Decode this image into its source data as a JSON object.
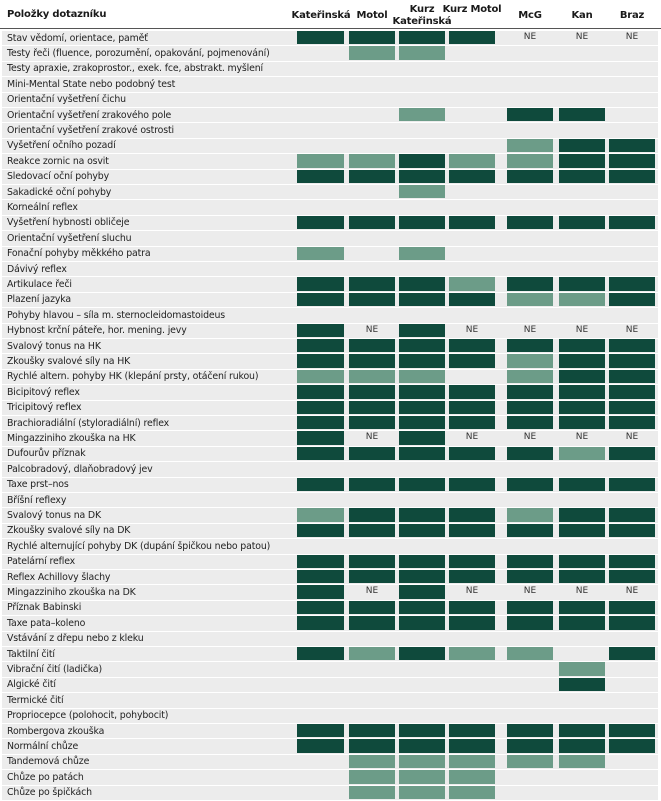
{
  "colors": {
    "D": "#0f4a3c",
    "M": "#6c9c88",
    "N": "#ececec",
    "row_bg": "#ececec"
  },
  "header": {
    "items": "Položky dotazníku",
    "cols": [
      "Kateřinská",
      "Motol",
      "Kurz Kateřinská",
      "Kurz Motol",
      "McG",
      "Kan",
      "Braz"
    ]
  },
  "ne_text": "NE",
  "rows": [
    {
      "label": "Stav vědomí, orientace, paměť",
      "c": [
        "D",
        "D",
        "D",
        "D",
        "NE",
        "NE",
        "NE"
      ]
    },
    {
      "label": "Testy řeči (fluence, porozumění, opakování, pojmenování)",
      "c": [
        "N",
        "M",
        "M",
        "N",
        "N",
        "N",
        "N"
      ]
    },
    {
      "label": "Testy apraxie, zrakoprostor., exek. fce, abstrakt. myšlení",
      "c": [
        "N",
        "N",
        "N",
        "N",
        "N",
        "N",
        "N"
      ]
    },
    {
      "label": "Mini-Mental State nebo podobný test",
      "c": [
        "N",
        "N",
        "N",
        "N",
        "N",
        "N",
        "N"
      ]
    },
    {
      "label": "Orientační vyšetření čichu",
      "c": [
        "N",
        "N",
        "N",
        "N",
        "N",
        "N",
        "N"
      ]
    },
    {
      "label": "Orientační vyšetření zrakového pole",
      "c": [
        "N",
        "N",
        "M",
        "N",
        "D",
        "D",
        "N"
      ]
    },
    {
      "label": "Orientační vyšetření zrakové ostrosti",
      "c": [
        "N",
        "N",
        "N",
        "N",
        "N",
        "N",
        "N"
      ]
    },
    {
      "label": "Vyšetření očního pozadí",
      "c": [
        "N",
        "N",
        "N",
        "N",
        "M",
        "D",
        "D"
      ]
    },
    {
      "label": "Reakce zornic na osvit",
      "c": [
        "M",
        "M",
        "D",
        "M",
        "M",
        "D",
        "D"
      ]
    },
    {
      "label": "Sledovací oční pohyby",
      "c": [
        "D",
        "D",
        "D",
        "D",
        "D",
        "D",
        "D"
      ]
    },
    {
      "label": "Sakadické oční pohyby",
      "c": [
        "N",
        "N",
        "M",
        "N",
        "N",
        "N",
        "N"
      ]
    },
    {
      "label": "Korneální reflex",
      "c": [
        "N",
        "N",
        "N",
        "N",
        "N",
        "N",
        "N"
      ]
    },
    {
      "label": "Vyšetření hybnosti obličeje",
      "c": [
        "D",
        "D",
        "D",
        "D",
        "D",
        "D",
        "D"
      ]
    },
    {
      "label": "Orientační vyšetření sluchu",
      "c": [
        "N",
        "N",
        "N",
        "N",
        "N",
        "N",
        "N"
      ]
    },
    {
      "label": "Fonační pohyby měkkého patra",
      "c": [
        "M",
        "N",
        "M",
        "N",
        "N",
        "N",
        "N"
      ]
    },
    {
      "label": "Dávivý reflex",
      "c": [
        "N",
        "N",
        "N",
        "N",
        "N",
        "N",
        "N"
      ]
    },
    {
      "label": "Artikulace řeči",
      "c": [
        "D",
        "D",
        "D",
        "M",
        "D",
        "D",
        "D"
      ]
    },
    {
      "label": "Plazení jazyka",
      "c": [
        "D",
        "D",
        "D",
        "D",
        "M",
        "M",
        "D"
      ]
    },
    {
      "label": "Pohyby hlavou – síla m. sternocleidomastoideus",
      "c": [
        "N",
        "N",
        "N",
        "N",
        "N",
        "N",
        "N"
      ]
    },
    {
      "label": "Hybnost krční páteře, hor. mening. jevy",
      "c": [
        "D",
        "NE",
        "D",
        "NE",
        "NE",
        "NE",
        "NE"
      ]
    },
    {
      "label": "Svalový tonus na HK",
      "c": [
        "D",
        "D",
        "D",
        "D",
        "D",
        "D",
        "D"
      ]
    },
    {
      "label": "Zkoušky svalové síly na HK",
      "c": [
        "D",
        "D",
        "D",
        "D",
        "M",
        "D",
        "D"
      ]
    },
    {
      "label": "Rychlé altern. pohyby HK (klepání prsty, otáčení rukou)",
      "c": [
        "M",
        "M",
        "M",
        "N",
        "M",
        "D",
        "D"
      ]
    },
    {
      "label": "Bicipitový reflex",
      "c": [
        "D",
        "D",
        "D",
        "D",
        "D",
        "D",
        "D"
      ]
    },
    {
      "label": "Tricipitový reflex",
      "c": [
        "D",
        "D",
        "D",
        "D",
        "D",
        "D",
        "D"
      ]
    },
    {
      "label": "Brachioradiální (styloradiální) reflex",
      "c": [
        "D",
        "D",
        "D",
        "D",
        "D",
        "D",
        "D"
      ]
    },
    {
      "label": "Mingazziniho zkouška na HK",
      "c": [
        "D",
        "NE",
        "D",
        "NE",
        "NE",
        "NE",
        "NE"
      ]
    },
    {
      "label": "Dufourův příznak",
      "c": [
        "D",
        "D",
        "D",
        "D",
        "D",
        "M",
        "D"
      ]
    },
    {
      "label": "Palcobradový, dlaňobradový jev",
      "c": [
        "N",
        "N",
        "N",
        "N",
        "N",
        "N",
        "N"
      ]
    },
    {
      "label": "Taxe prst–nos",
      "c": [
        "D",
        "D",
        "D",
        "D",
        "D",
        "D",
        "D"
      ]
    },
    {
      "label": "Bříšní reflexy",
      "c": [
        "N",
        "N",
        "N",
        "N",
        "N",
        "N",
        "N"
      ]
    },
    {
      "label": "Svalový tonus na DK",
      "c": [
        "M",
        "D",
        "D",
        "D",
        "M",
        "D",
        "D"
      ]
    },
    {
      "label": "Zkoušky svalové síly na DK",
      "c": [
        "D",
        "D",
        "D",
        "D",
        "D",
        "D",
        "D"
      ]
    },
    {
      "label": "Rychlé alternující pohyby DK (dupání špičkou nebo patou)",
      "c": [
        "N",
        "N",
        "N",
        "N",
        "N",
        "N",
        "N"
      ]
    },
    {
      "label": "Patelární reflex",
      "c": [
        "D",
        "D",
        "D",
        "D",
        "D",
        "D",
        "D"
      ]
    },
    {
      "label": "Reflex Achillovy šlachy",
      "c": [
        "D",
        "D",
        "D",
        "D",
        "D",
        "D",
        "D"
      ]
    },
    {
      "label": "Mingazziniho zkouška na DK",
      "c": [
        "D",
        "NE",
        "D",
        "NE",
        "NE",
        "NE",
        "NE"
      ]
    },
    {
      "label": "Příznak Babinski",
      "c": [
        "D",
        "D",
        "D",
        "D",
        "D",
        "D",
        "D"
      ]
    },
    {
      "label": "Taxe pata–koleno",
      "c": [
        "D",
        "D",
        "D",
        "D",
        "D",
        "D",
        "D"
      ]
    },
    {
      "label": "Vstávání z dřepu nebo z kleku",
      "c": [
        "N",
        "N",
        "N",
        "N",
        "N",
        "N",
        "N"
      ]
    },
    {
      "label": "Taktilní čití",
      "c": [
        "D",
        "M",
        "D",
        "M",
        "M",
        "N",
        "D"
      ]
    },
    {
      "label": "Vibrační čití (ladička)",
      "c": [
        "N",
        "N",
        "N",
        "N",
        "N",
        "M",
        "N"
      ]
    },
    {
      "label": "Algické čití",
      "c": [
        "N",
        "N",
        "N",
        "N",
        "N",
        "D",
        "N"
      ]
    },
    {
      "label": "Termické čití",
      "c": [
        "N",
        "N",
        "N",
        "N",
        "N",
        "N",
        "N"
      ]
    },
    {
      "label": "Propriocepce (polohocit, pohybocit)",
      "c": [
        "N",
        "N",
        "N",
        "N",
        "N",
        "N",
        "N"
      ]
    },
    {
      "label": "Rombergova zkouška",
      "c": [
        "D",
        "D",
        "D",
        "D",
        "D",
        "D",
        "D"
      ]
    },
    {
      "label": "Normální chůze",
      "c": [
        "D",
        "D",
        "D",
        "D",
        "D",
        "D",
        "D"
      ]
    },
    {
      "label": "Tandemová chůze",
      "c": [
        "N",
        "M",
        "M",
        "M",
        "M",
        "M",
        "N"
      ]
    },
    {
      "label": "Chůze po patách",
      "c": [
        "N",
        "M",
        "M",
        "M",
        "N",
        "N",
        "N"
      ]
    },
    {
      "label": "Chůze po špičkách",
      "c": [
        "N",
        "M",
        "M",
        "M",
        "N",
        "N",
        "N"
      ]
    }
  ]
}
